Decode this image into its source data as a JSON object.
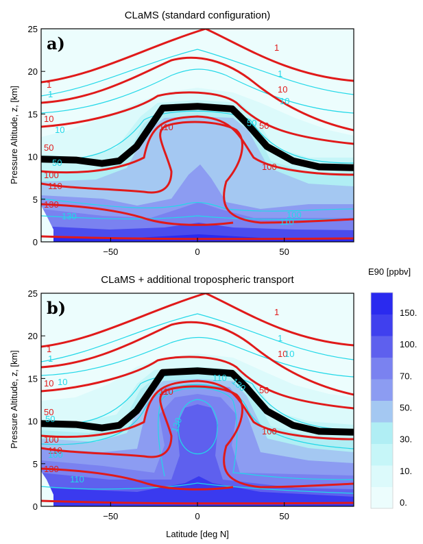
{
  "chart_data": [
    {
      "type": "heatmap",
      "panel_label": "a)",
      "title": "CLaMS (standard configuration)",
      "xlabel": "",
      "ylabel": "Pressure Altitude, z, [km]",
      "xlim": [
        -90,
        90
      ],
      "ylim": [
        0,
        25
      ],
      "x_ticks": [
        "-50",
        "0",
        "50"
      ],
      "y_ticks": [
        "0",
        "5",
        "10",
        "15",
        "20",
        "25"
      ],
      "fill_variable": "E90 [ppbv]",
      "red_contour_labels": [
        "1",
        "1",
        "10",
        "10",
        "50",
        "50",
        "100",
        "100",
        "110",
        "110",
        "130"
      ],
      "cyan_contour_labels": [
        "1",
        "1",
        "10",
        "10",
        "50",
        "50",
        "100",
        "110",
        "130"
      ],
      "tropopause": {
        "lat": [
          -90,
          -70,
          -55,
          -45,
          -35,
          -25,
          -20,
          0,
          20,
          28,
          40,
          55,
          70,
          90
        ],
        "z": [
          9.7,
          9.6,
          9.2,
          9.5,
          11.2,
          14.2,
          15.7,
          15.9,
          15.6,
          14.0,
          11.2,
          9.5,
          8.8,
          8.7
        ]
      }
    },
    {
      "type": "heatmap",
      "panel_label": "b)",
      "title": "CLaMS + additional tropospheric transport",
      "xlabel": "Latitude [deg N]",
      "ylabel": "Pressure Altitude, z, [km]",
      "xlim": [
        -90,
        90
      ],
      "ylim": [
        0,
        25
      ],
      "x_ticks": [
        "-50",
        "0",
        "50"
      ],
      "y_ticks": [
        "0",
        "5",
        "10",
        "15",
        "20",
        "25"
      ],
      "fill_variable": "E90 [ppbv]",
      "red_contour_labels": [
        "1",
        "1",
        "10",
        "10",
        "50",
        "50",
        "100",
        "100",
        "110",
        "110",
        "130"
      ],
      "cyan_contour_labels": [
        "1",
        "1",
        "10",
        "10",
        "50",
        "100",
        "110",
        "110",
        "130",
        "130"
      ],
      "tropopause": {
        "lat": [
          -90,
          -70,
          -55,
          -45,
          -35,
          -25,
          -20,
          0,
          20,
          28,
          40,
          55,
          70,
          90
        ],
        "z": [
          9.7,
          9.6,
          9.2,
          9.5,
          11.2,
          14.2,
          15.7,
          15.9,
          15.6,
          14.0,
          11.2,
          9.5,
          8.8,
          8.7
        ]
      }
    }
  ],
  "colorbar": {
    "label": "E90 [ppbv]",
    "tick_labels": [
      "150.",
      "100.",
      "70.",
      "50.",
      "30.",
      "10.",
      "0."
    ],
    "colors": [
      "#ecfdfd",
      "#dcfafb",
      "#c6f6f8",
      "#b0eef4",
      "#a4c8f2",
      "#8c9cf2",
      "#7a82f0",
      "#5e60ee",
      "#4040ee",
      "#2a2aef"
    ]
  }
}
